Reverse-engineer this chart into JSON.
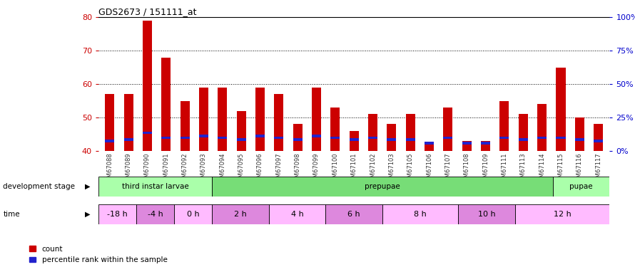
{
  "title": "GDS2673 / 151111_at",
  "samples": [
    "GSM67088",
    "GSM67089",
    "GSM67090",
    "GSM67091",
    "GSM67092",
    "GSM67093",
    "GSM67094",
    "GSM67095",
    "GSM67096",
    "GSM67097",
    "GSM67098",
    "GSM67099",
    "GSM67100",
    "GSM67101",
    "GSM67102",
    "GSM67103",
    "GSM67105",
    "GSM67106",
    "GSM67107",
    "GSM67108",
    "GSM67109",
    "GSM67111",
    "GSM67113",
    "GSM67114",
    "GSM67115",
    "GSM67116",
    "GSM67117"
  ],
  "count_values": [
    57,
    57,
    79,
    68,
    55,
    59,
    59,
    52,
    59,
    57,
    48,
    59,
    53,
    46,
    51,
    48,
    51,
    42,
    53,
    43,
    43,
    55,
    51,
    54,
    65,
    50,
    48
  ],
  "percentile_values": [
    42.5,
    43.0,
    45.0,
    43.5,
    43.5,
    44.0,
    43.5,
    43.0,
    44.0,
    43.5,
    43.0,
    44.0,
    43.5,
    43.0,
    43.5,
    43.0,
    43.0,
    42.0,
    43.5,
    42.0,
    42.0,
    43.5,
    43.0,
    43.5,
    43.5,
    43.0,
    42.5
  ],
  "ylim_left": [
    40,
    80
  ],
  "ylim_right": [
    0,
    100
  ],
  "yticks_left": [
    40,
    50,
    60,
    70,
    80
  ],
  "yticks_right": [
    0,
    25,
    50,
    75,
    100
  ],
  "bar_color": "#cc0000",
  "blue_color": "#2222cc",
  "dev_stages": [
    {
      "label": "third instar larvae",
      "start": 0,
      "end": 6,
      "color": "#aaffaa"
    },
    {
      "label": "prepupae",
      "start": 6,
      "end": 24,
      "color": "#77dd77"
    },
    {
      "label": "pupae",
      "start": 24,
      "end": 27,
      "color": "#aaffaa"
    }
  ],
  "time_groups": [
    {
      "label": "-18 h",
      "start": 0,
      "end": 2,
      "color": "#ffbbff"
    },
    {
      "label": "-4 h",
      "start": 2,
      "end": 4,
      "color": "#dd88dd"
    },
    {
      "label": "0 h",
      "start": 4,
      "end": 6,
      "color": "#ffbbff"
    },
    {
      "label": "2 h",
      "start": 6,
      "end": 9,
      "color": "#dd88dd"
    },
    {
      "label": "4 h",
      "start": 9,
      "end": 12,
      "color": "#ffbbff"
    },
    {
      "label": "6 h",
      "start": 12,
      "end": 15,
      "color": "#dd88dd"
    },
    {
      "label": "8 h",
      "start": 15,
      "end": 19,
      "color": "#ffbbff"
    },
    {
      "label": "10 h",
      "start": 19,
      "end": 22,
      "color": "#dd88dd"
    },
    {
      "label": "12 h",
      "start": 22,
      "end": 27,
      "color": "#ffbbff"
    }
  ],
  "left_axis_color": "#cc0000",
  "right_axis_color": "#0000cc"
}
